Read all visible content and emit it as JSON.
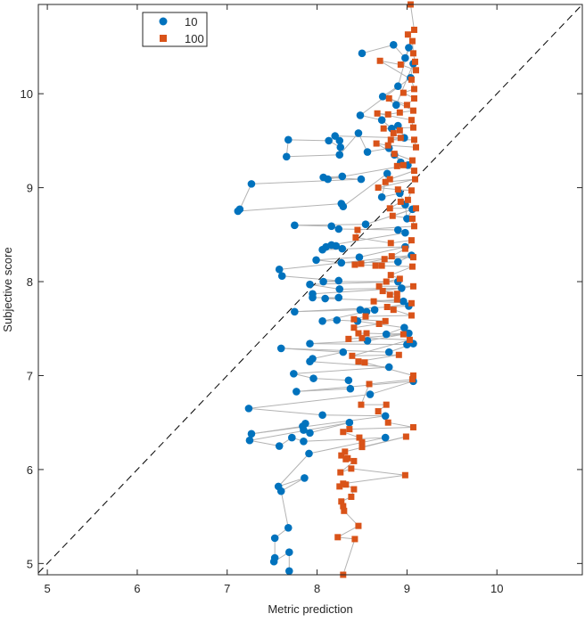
{
  "chart_data": {
    "type": "scatter",
    "xlabel": "Metric prediction",
    "ylabel": "Subjective score",
    "xlim": [
      4.9,
      10.95
    ],
    "ylim": [
      4.88,
      10.95
    ],
    "xticks": [
      5,
      6,
      7,
      8,
      9,
      10
    ],
    "yticks": [
      5,
      6,
      7,
      8,
      9,
      10
    ],
    "grid": false,
    "legend_position": "top-left",
    "diagonal_reference_line": "dashed y = x",
    "connector_color": "#b3b3b3",
    "series": [
      {
        "name": "10",
        "marker": "circle",
        "color": "#0072bd",
        "points": [
          [
            8.5,
            10.43
          ],
          [
            8.85,
            10.52
          ],
          [
            8.98,
            10.38
          ],
          [
            9.02,
            10.49
          ],
          [
            8.9,
            10.08
          ],
          [
            8.73,
            9.97
          ],
          [
            8.88,
            9.88
          ],
          [
            9.07,
            10.32
          ],
          [
            9.04,
            10.17
          ],
          [
            8.48,
            9.77
          ],
          [
            8.72,
            9.72
          ],
          [
            8.83,
            9.63
          ],
          [
            8.9,
            9.66
          ],
          [
            8.97,
            9.53
          ],
          [
            8.2,
            9.55
          ],
          [
            8.25,
            9.5
          ],
          [
            8.26,
            9.43
          ],
          [
            8.13,
            9.5
          ],
          [
            7.68,
            9.51
          ],
          [
            7.66,
            9.33
          ],
          [
            8.25,
            9.35
          ],
          [
            8.46,
            9.58
          ],
          [
            8.56,
            9.38
          ],
          [
            8.8,
            9.42
          ],
          [
            8.93,
            9.27
          ],
          [
            8.86,
            9.35
          ],
          [
            9.01,
            9.24
          ],
          [
            8.12,
            9.09
          ],
          [
            8.28,
            9.12
          ],
          [
            8.07,
            9.11
          ],
          [
            8.49,
            9.09
          ],
          [
            7.27,
            9.04
          ],
          [
            7.14,
            8.77
          ],
          [
            7.12,
            8.75
          ],
          [
            8.27,
            8.83
          ],
          [
            8.29,
            8.8
          ],
          [
            8.78,
            9.15
          ],
          [
            8.72,
            8.9
          ],
          [
            8.92,
            8.94
          ],
          [
            8.98,
            8.82
          ],
          [
            9.0,
            8.67
          ],
          [
            9.06,
            8.77
          ],
          [
            8.54,
            8.61
          ],
          [
            7.75,
            8.6
          ],
          [
            8.16,
            8.59
          ],
          [
            8.24,
            8.56
          ],
          [
            8.9,
            8.55
          ],
          [
            8.98,
            8.52
          ],
          [
            8.16,
            8.39
          ],
          [
            8.21,
            8.38
          ],
          [
            8.1,
            8.37
          ],
          [
            8.28,
            8.35
          ],
          [
            8.06,
            8.34
          ],
          [
            8.98,
            8.37
          ],
          [
            8.47,
            8.26
          ],
          [
            7.99,
            8.23
          ],
          [
            8.27,
            8.2
          ],
          [
            8.9,
            8.21
          ],
          [
            9.05,
            8.28
          ],
          [
            7.58,
            8.13
          ],
          [
            7.61,
            8.06
          ],
          [
            8.24,
            8.01
          ],
          [
            8.07,
            8.0
          ],
          [
            8.9,
            8.0
          ],
          [
            7.92,
            7.97
          ],
          [
            8.25,
            7.92
          ],
          [
            8.94,
            7.93
          ],
          [
            7.95,
            7.87
          ],
          [
            7.95,
            7.83
          ],
          [
            8.24,
            7.83
          ],
          [
            8.09,
            7.82
          ],
          [
            8.96,
            7.79
          ],
          [
            9.02,
            7.74
          ],
          [
            7.75,
            7.68
          ],
          [
            8.48,
            7.7
          ],
          [
            8.55,
            7.68
          ],
          [
            8.64,
            7.7
          ],
          [
            8.06,
            7.58
          ],
          [
            8.22,
            7.59
          ],
          [
            8.45,
            7.58
          ],
          [
            8.97,
            7.51
          ],
          [
            8.77,
            7.44
          ],
          [
            9.02,
            7.45
          ],
          [
            8.56,
            7.37
          ],
          [
            7.92,
            7.34
          ],
          [
            9.0,
            7.33
          ],
          [
            9.07,
            7.34
          ],
          [
            8.8,
            7.25
          ],
          [
            7.6,
            7.29
          ],
          [
            8.29,
            7.25
          ],
          [
            7.95,
            7.18
          ],
          [
            7.92,
            7.15
          ],
          [
            8.8,
            7.09
          ],
          [
            7.74,
            7.02
          ],
          [
            7.96,
            6.97
          ],
          [
            8.35,
            6.95
          ],
          [
            8.37,
            6.86
          ],
          [
            7.77,
            6.83
          ],
          [
            9.07,
            6.94
          ],
          [
            8.59,
            6.8
          ],
          [
            7.24,
            6.65
          ],
          [
            8.06,
            6.58
          ],
          [
            8.76,
            6.57
          ],
          [
            7.27,
            6.38
          ],
          [
            7.84,
            6.46
          ],
          [
            7.87,
            6.49
          ],
          [
            7.85,
            6.42
          ],
          [
            7.92,
            6.39
          ],
          [
            8.36,
            6.5
          ],
          [
            7.25,
            6.31
          ],
          [
            7.58,
            6.25
          ],
          [
            7.72,
            6.34
          ],
          [
            7.85,
            6.3
          ],
          [
            8.76,
            6.34
          ],
          [
            7.91,
            6.17
          ],
          [
            7.57,
            5.82
          ],
          [
            7.86,
            5.91
          ],
          [
            7.6,
            5.77
          ],
          [
            7.68,
            5.38
          ],
          [
            7.53,
            5.27
          ],
          [
            7.53,
            5.06
          ],
          [
            7.52,
            5.02
          ],
          [
            7.69,
            5.12
          ],
          [
            7.69,
            4.92
          ]
        ]
      },
      {
        "name": "100",
        "marker": "square",
        "color": "#d95319",
        "points": [
          [
            9.04,
            10.95
          ],
          [
            9.08,
            10.68
          ],
          [
            9.01,
            10.63
          ],
          [
            9.06,
            10.56
          ],
          [
            9.07,
            10.43
          ],
          [
            9.09,
            10.34
          ],
          [
            9.1,
            10.25
          ],
          [
            8.93,
            10.31
          ],
          [
            8.7,
            10.35
          ],
          [
            9.05,
            10.15
          ],
          [
            9.08,
            10.05
          ],
          [
            8.96,
            10.01
          ],
          [
            9.08,
            9.95
          ],
          [
            9.0,
            9.88
          ],
          [
            8.8,
            9.95
          ],
          [
            9.07,
            9.82
          ],
          [
            8.92,
            9.8
          ],
          [
            8.79,
            9.78
          ],
          [
            8.67,
            9.79
          ],
          [
            9.05,
            9.72
          ],
          [
            9.07,
            9.64
          ],
          [
            8.74,
            9.63
          ],
          [
            8.92,
            9.61
          ],
          [
            8.85,
            9.58
          ],
          [
            8.93,
            9.53
          ],
          [
            8.82,
            9.51
          ],
          [
            9.08,
            9.51
          ],
          [
            9.1,
            9.43
          ],
          [
            8.79,
            9.45
          ],
          [
            8.66,
            9.47
          ],
          [
            8.86,
            9.36
          ],
          [
            9.06,
            9.29
          ],
          [
            8.89,
            9.23
          ],
          [
            8.96,
            9.24
          ],
          [
            9.08,
            9.18
          ],
          [
            8.81,
            9.09
          ],
          [
            8.76,
            9.06
          ],
          [
            9.09,
            9.09
          ],
          [
            8.68,
            9.0
          ],
          [
            8.9,
            8.98
          ],
          [
            9.05,
            8.97
          ],
          [
            9.01,
            8.87
          ],
          [
            8.93,
            8.85
          ],
          [
            8.81,
            8.78
          ],
          [
            9.1,
            8.78
          ],
          [
            8.84,
            8.7
          ],
          [
            9.06,
            8.67
          ],
          [
            9.08,
            8.59
          ],
          [
            8.45,
            8.55
          ],
          [
            8.43,
            8.47
          ],
          [
            8.82,
            8.41
          ],
          [
            9.05,
            8.44
          ],
          [
            8.98,
            8.35
          ],
          [
            8.83,
            8.27
          ],
          [
            9.07,
            8.26
          ],
          [
            8.75,
            8.24
          ],
          [
            8.49,
            8.19
          ],
          [
            8.42,
            8.18
          ],
          [
            8.72,
            8.17
          ],
          [
            8.65,
            8.17
          ],
          [
            9.06,
            8.16
          ],
          [
            8.82,
            8.07
          ],
          [
            8.92,
            8.03
          ],
          [
            8.77,
            8.0
          ],
          [
            8.69,
            7.95
          ],
          [
            9.07,
            7.95
          ],
          [
            8.73,
            7.9
          ],
          [
            8.89,
            7.87
          ],
          [
            8.81,
            7.86
          ],
          [
            8.89,
            7.81
          ],
          [
            8.63,
            7.79
          ],
          [
            9.05,
            7.77
          ],
          [
            8.78,
            7.73
          ],
          [
            8.85,
            7.7
          ],
          [
            9.05,
            7.64
          ],
          [
            8.54,
            7.63
          ],
          [
            8.41,
            7.6
          ],
          [
            8.76,
            7.58
          ],
          [
            8.69,
            7.55
          ],
          [
            8.41,
            7.51
          ],
          [
            8.46,
            7.45
          ],
          [
            8.55,
            7.45
          ],
          [
            8.96,
            7.44
          ],
          [
            8.35,
            7.39
          ],
          [
            8.5,
            7.4
          ],
          [
            9.03,
            7.38
          ],
          [
            8.39,
            7.21
          ],
          [
            8.91,
            7.22
          ],
          [
            8.46,
            7.15
          ],
          [
            8.53,
            7.14
          ],
          [
            9.07,
            7.0
          ],
          [
            9.06,
            6.96
          ],
          [
            8.58,
            6.91
          ],
          [
            8.49,
            6.69
          ],
          [
            8.77,
            6.69
          ],
          [
            8.68,
            6.62
          ],
          [
            8.79,
            6.5
          ],
          [
            9.07,
            6.45
          ],
          [
            8.36,
            6.43
          ],
          [
            8.29,
            6.4
          ],
          [
            8.47,
            6.34
          ],
          [
            8.5,
            6.29
          ],
          [
            8.5,
            6.24
          ],
          [
            8.99,
            6.35
          ],
          [
            8.31,
            6.19
          ],
          [
            8.27,
            6.15
          ],
          [
            8.34,
            6.12
          ],
          [
            8.32,
            6.11
          ],
          [
            8.41,
            6.09
          ],
          [
            8.26,
            5.97
          ],
          [
            8.38,
            6.01
          ],
          [
            8.98,
            5.94
          ],
          [
            8.29,
            5.85
          ],
          [
            8.25,
            5.82
          ],
          [
            8.32,
            5.84
          ],
          [
            8.41,
            5.79
          ],
          [
            8.38,
            5.71
          ],
          [
            8.27,
            5.66
          ],
          [
            8.29,
            5.61
          ],
          [
            8.3,
            5.56
          ],
          [
            8.46,
            5.4
          ],
          [
            8.23,
            5.28
          ],
          [
            8.42,
            5.26
          ],
          [
            8.29,
            4.88
          ]
        ]
      }
    ]
  }
}
